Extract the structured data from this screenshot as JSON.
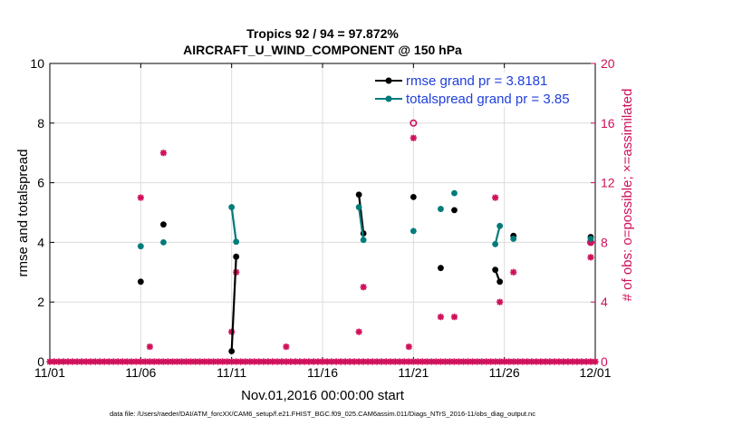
{
  "chart_data": {
    "type": "scatter",
    "title_line1": "Tropics 92 / 94 = 97.872%",
    "title_line2": "AIRCRAFT_U_WIND_COMPONENT @ 150 hPa",
    "xlabel": "Nov.01,2016 00:00:00 start",
    "ylabel_left": "rmse and totalspread",
    "ylabel_right": "# of obs: o=possible; ×=assimilated",
    "footer": "data file: /Users/raeder/DAI/ATM_forcXX/CAM6_setup/f.e21.FHIST_BGC.f09_025.CAM6assim.011/Diags_NTrS_2016-11/obs_diag_output.nc",
    "xlim": [
      1,
      31
    ],
    "ylim_left": [
      0,
      10
    ],
    "ylim_right": [
      0,
      20
    ],
    "x_ticks": [
      1,
      6,
      11,
      16,
      21,
      26,
      31
    ],
    "x_tick_labels": [
      "11/01",
      "11/06",
      "11/11",
      "11/16",
      "11/21",
      "11/26",
      "12/01"
    ],
    "y_ticks_left": [
      0,
      2,
      4,
      6,
      8,
      10
    ],
    "y_tick_labels_left": [
      "0",
      "2",
      "4",
      "6",
      "8",
      "10"
    ],
    "y_ticks_right": [
      0,
      4,
      8,
      12,
      16,
      20
    ],
    "y_tick_labels_right": [
      "0",
      "4",
      "8",
      "12",
      "16",
      "20"
    ],
    "grid": true,
    "legend_position": "top-right",
    "series": [
      {
        "name": "rmse grand pr = 3.8181",
        "color": "#000000",
        "axis": "left",
        "segments": [
          [
            [
              6.0,
              2.68
            ]
          ],
          [
            [
              7.25,
              4.6
            ]
          ],
          [
            [
              11.0,
              0.35
            ],
            [
              11.25,
              3.52
            ]
          ],
          [
            [
              18.0,
              5.6
            ],
            [
              18.25,
              4.3
            ]
          ],
          [
            [
              21.0,
              5.52
            ]
          ],
          [
            [
              22.5,
              3.14
            ]
          ],
          [
            [
              23.25,
              5.08
            ]
          ],
          [
            [
              25.5,
              3.08
            ],
            [
              25.75,
              2.68
            ]
          ],
          [
            [
              26.5,
              4.22
            ]
          ],
          [
            [
              30.75,
              4.18
            ]
          ]
        ]
      },
      {
        "name": "totalspread grand pr = 3.85",
        "color": "#007b7b",
        "axis": "left",
        "segments": [
          [
            [
              6.0,
              3.87
            ]
          ],
          [
            [
              7.25,
              4.0
            ]
          ],
          [
            [
              11.0,
              5.18
            ],
            [
              11.25,
              4.02
            ]
          ],
          [
            [
              18.0,
              5.18
            ],
            [
              18.25,
              4.08
            ]
          ],
          [
            [
              21.0,
              4.38
            ]
          ],
          [
            [
              22.5,
              5.12
            ]
          ],
          [
            [
              23.25,
              5.65
            ]
          ],
          [
            [
              25.5,
              3.94
            ],
            [
              25.75,
              4.55
            ]
          ],
          [
            [
              26.5,
              4.12
            ]
          ],
          [
            [
              30.75,
              4.12
            ]
          ]
        ]
      }
    ],
    "obs_possible": {
      "color": "#d0105a",
      "axis": "right",
      "points": [
        [
          21.0,
          16
        ],
        [
          30.75,
          8
        ]
      ]
    },
    "obs_assimilated": {
      "color": "#d0105a",
      "axis": "right",
      "points": [
        [
          6.0,
          11
        ],
        [
          6.5,
          1
        ],
        [
          7.25,
          14
        ],
        [
          11.0,
          2
        ],
        [
          11.25,
          6
        ],
        [
          14.0,
          1
        ],
        [
          18.0,
          2
        ],
        [
          18.25,
          5
        ],
        [
          20.75,
          1
        ],
        [
          21.0,
          15
        ],
        [
          22.5,
          3
        ],
        [
          23.25,
          3
        ],
        [
          25.5,
          11
        ],
        [
          25.75,
          4
        ],
        [
          26.5,
          6
        ],
        [
          30.75,
          7
        ],
        [
          30.75,
          8
        ]
      ],
      "zero_range": [
        1,
        31
      ],
      "zero_step": 0.25
    }
  }
}
